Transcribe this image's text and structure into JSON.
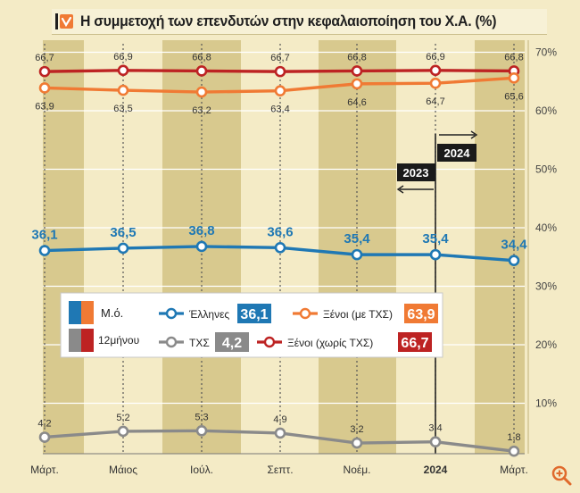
{
  "title": "Η συμμετοχή των επενδυτών στην κεφαλαιοποίηση του Χ.Α. (%)",
  "colors": {
    "background": "#f4ebc6",
    "stripe": "#d8c98e",
    "greeks": "#1f78b4",
    "foreign_with": "#f07a34",
    "foreign_without": "#bd2323",
    "central": "#8a8a8a",
    "grid": "#ffffff"
  },
  "icons": {
    "title": "arrow-badge-icon",
    "zoom": "zoom-in-icon"
  },
  "chart_data": {
    "type": "line",
    "title": "Η συμμετοχή των επενδυτών στην κεφαλαιοποίηση του Χ.Α. (%)",
    "categories": [
      "Μάρτ.",
      "Μάιος",
      "Ιούλ.",
      "Σεπτ.",
      "Νοέμ.",
      "2024",
      "Μάρτ."
    ],
    "y_ticks": [
      "10%",
      "20%",
      "30%",
      "40%",
      "50%",
      "60%",
      "70%"
    ],
    "ylim": [
      0,
      70
    ],
    "grid": true,
    "series": [
      {
        "key": "foreign_without",
        "name": "Ξένοι (χωρίς ΤΧΣ)",
        "labels_above": true,
        "values": [
          66.7,
          66.9,
          66.8,
          66.7,
          66.8,
          66.9,
          66.8
        ],
        "labels": [
          "66,7",
          "66,9",
          "66,8",
          "66,7",
          "66,8",
          "66,9",
          "66,8"
        ]
      },
      {
        "key": "foreign_with",
        "name": "Ξένοι (με ΤΧΣ)",
        "labels_above": false,
        "values": [
          63.9,
          63.5,
          63.2,
          63.4,
          64.6,
          64.7,
          65.6
        ],
        "labels": [
          "63,9",
          "63,5",
          "63,2",
          "63,4",
          "64,6",
          "64,7",
          "65,6"
        ]
      },
      {
        "key": "greeks",
        "name": "Έλληνες",
        "labels_above": true,
        "values": [
          36.1,
          36.5,
          36.8,
          36.6,
          35.4,
          35.4,
          34.4
        ],
        "labels": [
          "36,1",
          "36,5",
          "36,8",
          "36,6",
          "35,4",
          "35,4",
          "34,4"
        ]
      },
      {
        "key": "central",
        "name": "ΤΧΣ",
        "labels_above": true,
        "values": [
          4.2,
          5.2,
          5.3,
          4.9,
          3.2,
          3.4,
          1.8
        ],
        "labels": [
          "4,2",
          "5,2",
          "5,3",
          "4,9",
          "3,2",
          "3,4",
          "1,8"
        ]
      }
    ],
    "year_divider": {
      "left_label": "2023",
      "right_label": "2024"
    },
    "legend": {
      "placement": "middle-left",
      "period_avg_label": "Μ.ό.",
      "period_12m_label": "12μήνου",
      "entries": [
        {
          "key": "greeks",
          "name": "Έλληνες",
          "value": "36,1"
        },
        {
          "key": "foreign_with",
          "name": "Ξένοι (με ΤΧΣ)",
          "value": "63,9"
        },
        {
          "key": "central",
          "name": "ΤΧΣ",
          "value": "4,2"
        },
        {
          "key": "foreign_without",
          "name": "Ξένοι (χωρίς ΤΧΣ)",
          "value": "66,7"
        }
      ]
    }
  }
}
